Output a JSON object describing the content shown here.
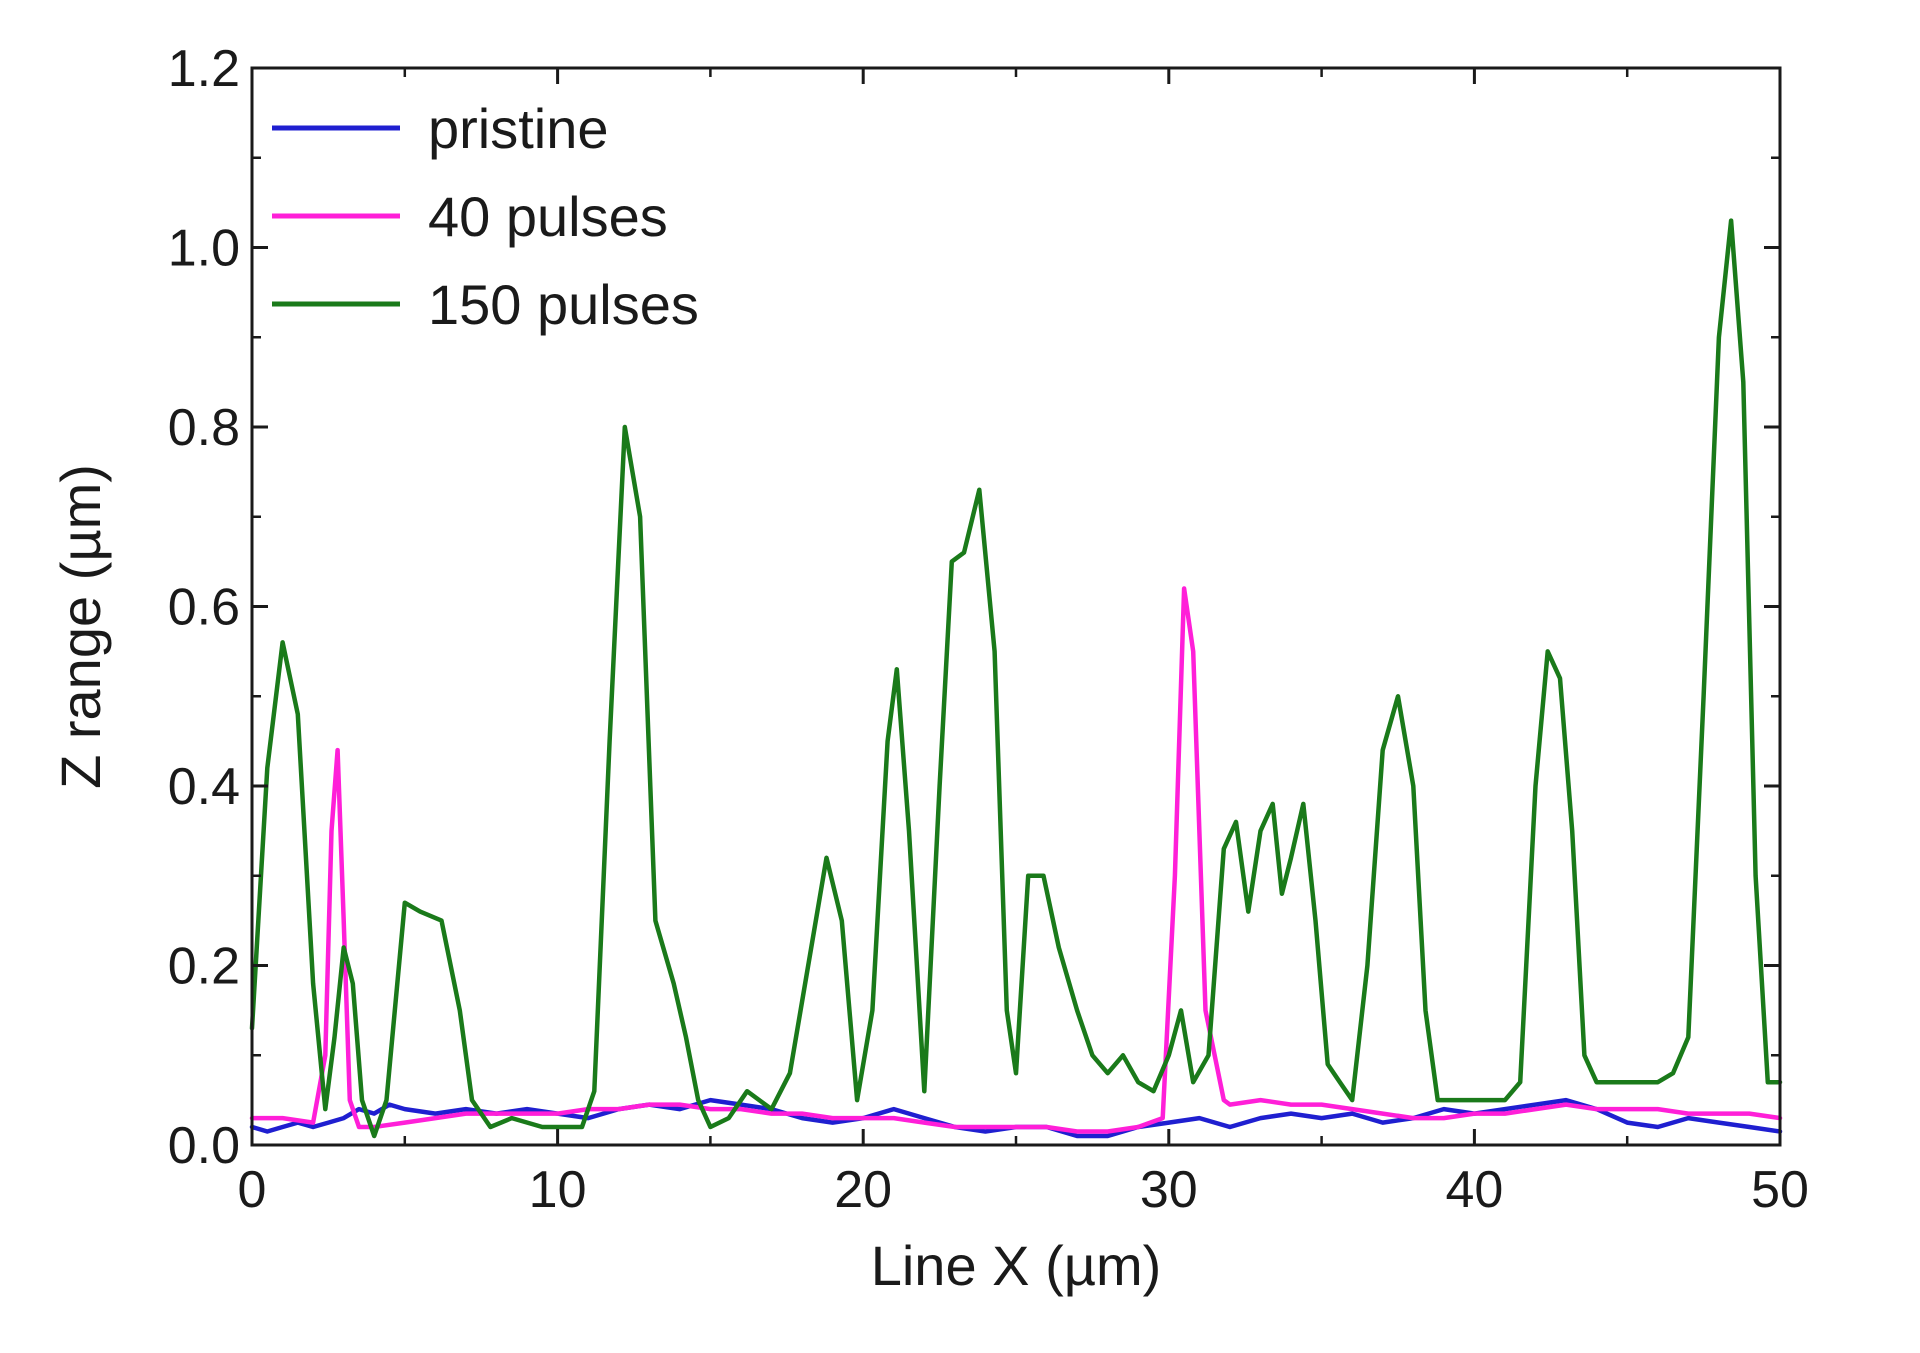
{
  "chart_data": {
    "type": "line",
    "title": "",
    "xlabel": "Line X (µm)",
    "ylabel": "Z range (µm)",
    "xlim": [
      0,
      50
    ],
    "ylim": [
      0,
      1.2
    ],
    "x_ticks": [
      0,
      10,
      20,
      30,
      40,
      50
    ],
    "x_tick_labels": [
      "0",
      "10",
      "20",
      "30",
      "40",
      "50"
    ],
    "y_ticks": [
      0,
      0.2,
      0.4,
      0.6,
      0.8,
      1.0,
      1.2
    ],
    "y_tick_labels": [
      "0.0",
      "0.2",
      "0.4",
      "0.6",
      "0.8",
      "1.0",
      "1.2"
    ],
    "grid": false,
    "legend_position": "top-left",
    "series": [
      {
        "name": "pristine",
        "color": "#1f1fd0",
        "x": [
          0,
          0.5,
          1,
          1.5,
          2,
          2.5,
          3,
          3.5,
          4,
          4.5,
          5,
          6,
          7,
          8,
          9,
          10,
          11,
          12,
          13,
          14,
          15,
          16,
          17,
          18,
          19,
          20,
          21,
          22,
          23,
          24,
          25,
          26,
          27,
          28,
          29,
          30,
          31,
          32,
          33,
          34,
          35,
          36,
          37,
          38,
          39,
          40,
          41,
          42,
          43,
          44,
          45,
          46,
          47,
          48,
          49,
          50
        ],
        "y": [
          0.02,
          0.015,
          0.02,
          0.025,
          0.02,
          0.025,
          0.03,
          0.04,
          0.035,
          0.045,
          0.04,
          0.035,
          0.04,
          0.035,
          0.04,
          0.035,
          0.03,
          0.04,
          0.045,
          0.04,
          0.05,
          0.045,
          0.04,
          0.03,
          0.025,
          0.03,
          0.04,
          0.03,
          0.02,
          0.015,
          0.02,
          0.02,
          0.01,
          0.01,
          0.02,
          0.025,
          0.03,
          0.02,
          0.03,
          0.035,
          0.03,
          0.035,
          0.025,
          0.03,
          0.04,
          0.035,
          0.04,
          0.045,
          0.05,
          0.04,
          0.025,
          0.02,
          0.03,
          0.025,
          0.02,
          0.015
        ]
      },
      {
        "name": "40 pulses",
        "color": "#ff1fd8",
        "x": [
          0,
          1,
          2,
          2.4,
          2.6,
          2.8,
          3.0,
          3.2,
          3.5,
          4,
          5,
          6,
          7,
          8,
          9,
          10,
          11,
          12,
          13,
          14,
          15,
          16,
          17,
          18,
          19,
          20,
          21,
          22,
          23,
          24,
          25,
          26,
          27,
          28,
          29,
          29.8,
          30.2,
          30.5,
          30.8,
          31.2,
          31.8,
          32,
          33,
          34,
          35,
          36,
          37,
          38,
          39,
          40,
          41,
          42,
          43,
          44,
          45,
          46,
          47,
          48,
          49,
          50
        ],
        "y": [
          0.03,
          0.03,
          0.025,
          0.1,
          0.35,
          0.44,
          0.25,
          0.05,
          0.02,
          0.02,
          0.025,
          0.03,
          0.035,
          0.035,
          0.035,
          0.035,
          0.04,
          0.04,
          0.045,
          0.045,
          0.04,
          0.04,
          0.035,
          0.035,
          0.03,
          0.03,
          0.03,
          0.025,
          0.02,
          0.02,
          0.02,
          0.02,
          0.015,
          0.015,
          0.02,
          0.03,
          0.3,
          0.62,
          0.55,
          0.15,
          0.05,
          0.045,
          0.05,
          0.045,
          0.045,
          0.04,
          0.035,
          0.03,
          0.03,
          0.035,
          0.035,
          0.04,
          0.045,
          0.04,
          0.04,
          0.04,
          0.035,
          0.035,
          0.035,
          0.03
        ]
      },
      {
        "name": "150 pulses",
        "color": "#1a7a1a",
        "x": [
          0,
          0.5,
          1.0,
          1.5,
          2.0,
          2.4,
          2.7,
          3.0,
          3.3,
          3.6,
          4.0,
          4.4,
          5.0,
          5.5,
          6.2,
          6.8,
          7.2,
          7.8,
          8.5,
          9.5,
          10.0,
          10.8,
          11.2,
          11.7,
          12.2,
          12.7,
          13.2,
          13.8,
          14.2,
          14.6,
          15.0,
          15.6,
          16.2,
          17.0,
          17.6,
          18.2,
          18.8,
          19.3,
          19.8,
          20.3,
          20.8,
          21.1,
          21.5,
          22.0,
          22.5,
          22.9,
          23.3,
          23.8,
          24.3,
          24.7,
          25.0,
          25.4,
          25.9,
          26.4,
          27.0,
          27.5,
          28.0,
          28.5,
          29.0,
          29.5,
          30.0,
          30.4,
          30.8,
          31.3,
          31.8,
          32.2,
          32.6,
          33.0,
          33.4,
          33.7,
          34.0,
          34.4,
          34.8,
          35.2,
          35.6,
          36.0,
          36.5,
          37.0,
          37.5,
          38.0,
          38.4,
          38.8,
          39.2,
          40.0,
          41.0,
          41.5,
          42.0,
          42.4,
          42.8,
          43.2,
          43.6,
          44.0,
          44.5,
          45.0,
          46.0,
          46.5,
          47.0,
          47.5,
          48.0,
          48.4,
          48.8,
          49.2,
          49.6,
          50.0
        ],
        "y": [
          0.13,
          0.42,
          0.56,
          0.48,
          0.18,
          0.04,
          0.12,
          0.22,
          0.18,
          0.05,
          0.01,
          0.05,
          0.27,
          0.26,
          0.25,
          0.15,
          0.05,
          0.02,
          0.03,
          0.02,
          0.02,
          0.02,
          0.06,
          0.45,
          0.8,
          0.7,
          0.25,
          0.18,
          0.12,
          0.05,
          0.02,
          0.03,
          0.06,
          0.04,
          0.08,
          0.2,
          0.32,
          0.25,
          0.05,
          0.15,
          0.45,
          0.53,
          0.35,
          0.06,
          0.4,
          0.65,
          0.66,
          0.73,
          0.55,
          0.15,
          0.08,
          0.3,
          0.3,
          0.22,
          0.15,
          0.1,
          0.08,
          0.1,
          0.07,
          0.06,
          0.1,
          0.15,
          0.07,
          0.1,
          0.33,
          0.36,
          0.26,
          0.35,
          0.38,
          0.28,
          0.32,
          0.38,
          0.25,
          0.09,
          0.07,
          0.05,
          0.2,
          0.44,
          0.5,
          0.4,
          0.15,
          0.05,
          0.05,
          0.05,
          0.05,
          0.07,
          0.4,
          0.55,
          0.52,
          0.35,
          0.1,
          0.07,
          0.07,
          0.07,
          0.07,
          0.08,
          0.12,
          0.5,
          0.9,
          1.03,
          0.85,
          0.3,
          0.07,
          0.07
        ]
      }
    ]
  }
}
